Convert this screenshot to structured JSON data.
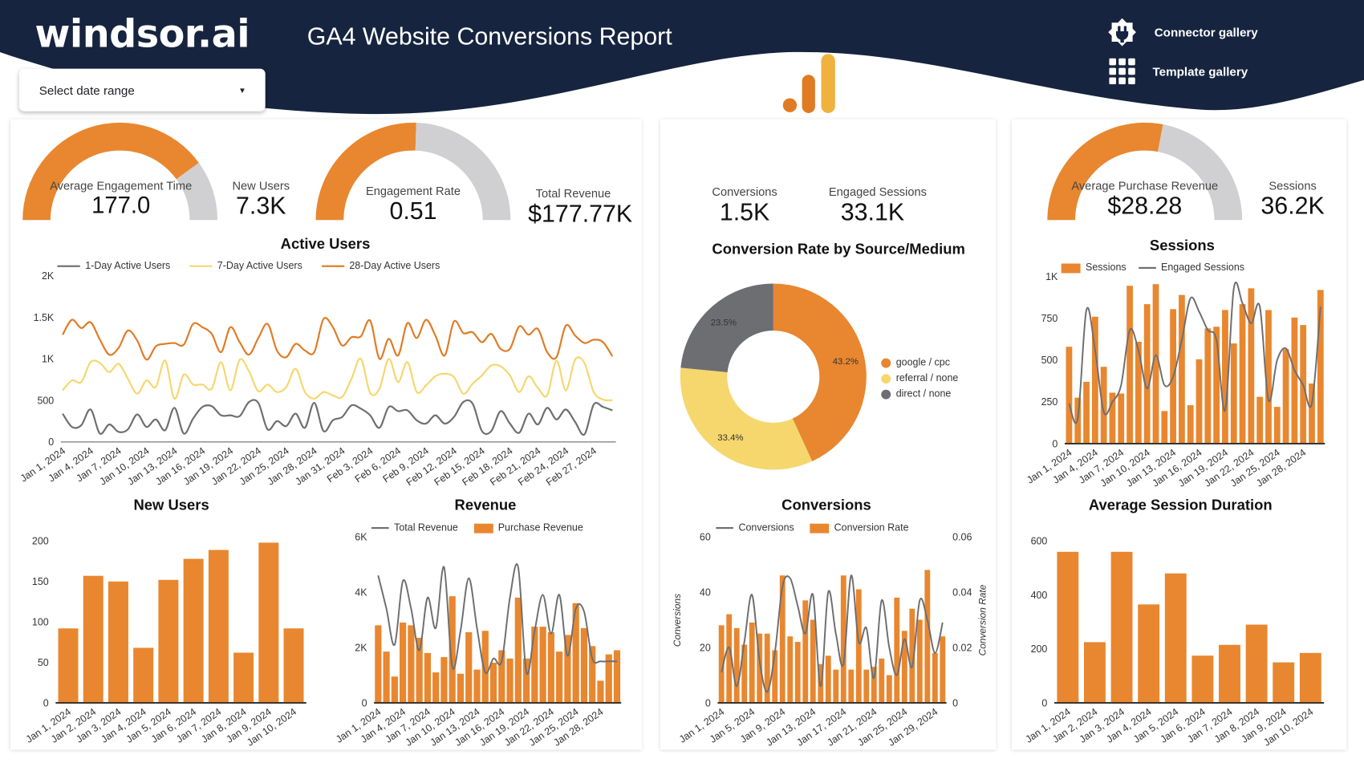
{
  "header": {
    "logo": "windsor.ai",
    "title": "GA4 Website Conversions Report",
    "links": [
      {
        "label": "Connector gallery",
        "icon": "plug-icon"
      },
      {
        "label": "Template gallery",
        "icon": "grid-icon"
      }
    ],
    "date_range": {
      "label": "Select date range",
      "icon": "caret-down-icon"
    }
  },
  "colors": {
    "navy": "#16243f",
    "orange": "#e8872f",
    "yellow": "#f5d76e",
    "gray": "#6d6e71",
    "gauge_track": "#d0d0d2"
  },
  "scorecards": {
    "avg_engagement_time": {
      "label": "Average Engagement Time",
      "value": "177.0",
      "gauge_fill": 0.8
    },
    "new_users": {
      "label": "New Users",
      "value": "7.3K"
    },
    "engagement_rate": {
      "label": "Engagement Rate",
      "value": "0.51",
      "gauge_fill": 0.51
    },
    "total_revenue": {
      "label": "Total Revenue",
      "value": "$177.77K"
    },
    "conversions": {
      "label": "Conversions",
      "value": "1.5K"
    },
    "engaged_sessions": {
      "label": "Engaged Sessions",
      "value": "33.1K"
    },
    "avg_purchase_revenue": {
      "label": "Average Purchase Revenue",
      "value": "$28.28",
      "gauge_fill": 0.56
    },
    "sessions": {
      "label": "Sessions",
      "value": "36.2K"
    }
  },
  "chart_data": [
    {
      "id": "active_users",
      "type": "line",
      "title": "Active Users",
      "y_ticks": [
        0,
        500,
        1000,
        1500,
        2000
      ],
      "y_tick_labels": [
        "0",
        "500",
        "1K",
        "1.5K",
        "2K"
      ],
      "ylim": [
        0,
        2000
      ],
      "x_tick_labels": [
        "Jan 1, 2024",
        "Jan 4, 2024",
        "Jan 7, 2024",
        "Jan 10, 2024",
        "Jan 13, 2024",
        "Jan 16, 2024",
        "Jan 19, 2024",
        "Jan 22, 2024",
        "Jan 25, 2024",
        "Jan 28, 2024",
        "Jan 31, 2024",
        "Feb 3, 2024",
        "Feb 6, 2024",
        "Feb 9, 2024",
        "Feb 12, 2024",
        "Feb 15, 2024",
        "Feb 18, 2024",
        "Feb 21, 2024",
        "Feb 24, 2024",
        "Feb 27, 2024"
      ],
      "series": [
        {
          "name": "1-Day Active Users",
          "color": "#6d6e71",
          "values": [
            340,
            180,
            200,
            390,
            100,
            210,
            120,
            150,
            330,
            180,
            270,
            140,
            410,
            100,
            280,
            420,
            430,
            320,
            320,
            310,
            480,
            470,
            150,
            250,
            190,
            340,
            170,
            470,
            130,
            260,
            300,
            440,
            400,
            320,
            170,
            420,
            370,
            380,
            260,
            220,
            320,
            220,
            300,
            480,
            460,
            130,
            130,
            370,
            220,
            110,
            340,
            210,
            410,
            270,
            390,
            240,
            90,
            450,
            420,
            380
          ]
        },
        {
          "name": "7-Day Active Users",
          "color": "#f5d76e",
          "values": [
            620,
            740,
            720,
            960,
            950,
            840,
            940,
            760,
            580,
            740,
            660,
            980,
            520,
            810,
            690,
            690,
            640,
            960,
            620,
            990,
            850,
            610,
            690,
            600,
            660,
            880,
            600,
            520,
            600,
            560,
            540,
            760,
            1000,
            590,
            640,
            1000,
            720,
            960,
            600,
            680,
            790,
            820,
            780,
            580,
            700,
            800,
            920,
            910,
            800,
            600,
            790,
            650,
            560,
            980,
            620,
            990,
            950,
            600,
            510,
            500
          ]
        },
        {
          "name": "28-Day Active Users",
          "color": "#e07b24",
          "values": [
            1290,
            1470,
            1370,
            1440,
            1230,
            1050,
            1130,
            1340,
            1220,
            990,
            1150,
            1180,
            1190,
            1170,
            1420,
            1380,
            1300,
            1080,
            1380,
            1200,
            1050,
            1250,
            1420,
            1100,
            1020,
            1180,
            1100,
            1080,
            1480,
            1380,
            1160,
            1260,
            1270,
            1460,
            1000,
            1240,
            1040,
            1430,
            1250,
            1470,
            1280,
            1040,
            1450,
            1310,
            1320,
            1200,
            1300,
            1120,
            1120,
            1390,
            1290,
            1360,
            1080,
            1020,
            1400,
            1280,
            1190,
            1230,
            1200,
            1030
          ]
        }
      ]
    },
    {
      "id": "new_users",
      "type": "bar",
      "title": "New Users",
      "y_ticks": [
        0,
        50,
        100,
        150,
        200
      ],
      "y_tick_labels": [
        "0",
        "50",
        "100",
        "150",
        "200"
      ],
      "ylim": [
        0,
        200
      ],
      "categories": [
        "Jan 1, 2024",
        "Jan 2, 2024",
        "Jan 3, 2024",
        "Jan 4, 2024",
        "Jan 5, 2024",
        "Jan 6, 2024",
        "Jan 7, 2024",
        "Jan 8, 2024",
        "Jan 9, 2024",
        "Jan 10, 2024"
      ],
      "values": [
        92,
        157,
        150,
        68,
        152,
        178,
        189,
        62,
        198,
        92
      ]
    },
    {
      "id": "revenue",
      "type": "bar+line",
      "title": "Revenue",
      "y_ticks": [
        0,
        2000,
        4000,
        6000
      ],
      "y_tick_labels": [
        "0",
        "2K",
        "4K",
        "6K"
      ],
      "ylim": [
        0,
        6000
      ],
      "x_tick_labels": [
        "Jan 1, 2024",
        "Jan 4, 2024",
        "Jan 7, 2024",
        "Jan 10, 2024",
        "Jan 13, 2024",
        "Jan 16, 2024",
        "Jan 19, 2024",
        "Jan 22, 2024",
        "Jan 25, 2024",
        "Jan 28, 2024"
      ],
      "series": [
        {
          "name": "Total Revenue",
          "kind": "line",
          "values": [
            4600,
            3400,
            2100,
            4400,
            3400,
            1900,
            3800,
            2700,
            4900,
            1300,
            2600,
            4500,
            2700,
            1100,
            1600,
            1500,
            3800,
            4900,
            1100,
            2600,
            3900,
            2500,
            3900,
            1700,
            3400,
            3300,
            1600,
            1500,
            1500,
            1500
          ]
        },
        {
          "name": "Purchase Revenue",
          "kind": "bar",
          "values": [
            2800,
            1850,
            950,
            2900,
            2800,
            2350,
            1800,
            1100,
            1650,
            3850,
            1050,
            2550,
            1200,
            2600,
            1450,
            1900,
            1600,
            3800,
            1600,
            2750,
            2750,
            2550,
            1850,
            2450,
            3600,
            2700,
            2050,
            800,
            1750,
            1900
          ]
        }
      ]
    },
    {
      "id": "conversion_rate_by_source",
      "type": "pie",
      "title": "Conversion Rate by Source/Medium",
      "slices": [
        {
          "label": "google / cpc",
          "value": 43.2,
          "text": "43.2%",
          "color": "#e8872f"
        },
        {
          "label": "referral / none",
          "value": 33.4,
          "text": "33.4%",
          "color": "#f5d76e"
        },
        {
          "label": "direct / none",
          "value": 23.5,
          "text": "23.5%",
          "color": "#6d6e71"
        }
      ]
    },
    {
      "id": "conversions",
      "type": "bar+line",
      "title": "Conversions",
      "ylabel": "Conversions",
      "y2label": "Conversion Rate",
      "y_ticks": [
        0,
        20,
        40,
        60
      ],
      "y_tick_labels": [
        "0",
        "20",
        "40",
        "60"
      ],
      "ylim": [
        0,
        60
      ],
      "y2_ticks": [
        0,
        0.02,
        0.04,
        0.06
      ],
      "y2_tick_labels": [
        "0",
        "0.02",
        "0.04",
        "0.06"
      ],
      "y2lim": [
        0,
        0.06
      ],
      "x_tick_labels": [
        "Jan 1, 2024",
        "Jan 5, 2024",
        "Jan 9, 2024",
        "Jan 13, 2024",
        "Jan 17, 2024",
        "Jan 21, 2024",
        "Jan 25, 2024",
        "Jan 29, 2024"
      ],
      "series": [
        {
          "name": "Conversions",
          "kind": "line",
          "values": [
            11,
            20,
            6,
            22,
            39,
            15,
            4,
            18,
            42,
            45,
            35,
            25,
            39,
            6,
            40,
            25,
            14,
            46,
            22,
            27,
            9,
            37,
            20,
            10,
            23,
            13,
            37,
            30,
            18,
            29
          ]
        },
        {
          "name": "Conversion Rate",
          "kind": "bar",
          "axis": "right",
          "values": [
            0.028,
            0.032,
            0.027,
            0.021,
            0.029,
            0.025,
            0.025,
            0.019,
            0.046,
            0.024,
            0.022,
            0.037,
            0.03,
            0.014,
            0.017,
            0.012,
            0.046,
            0.012,
            0.041,
            0.012,
            0.013,
            0.016,
            0.01,
            0.038,
            0.026,
            0.034,
            0.03,
            0.048,
            0.018,
            0.024
          ]
        }
      ]
    },
    {
      "id": "sessions",
      "type": "bar+line",
      "title": "Sessions",
      "y_ticks": [
        0,
        250,
        500,
        750,
        1000
      ],
      "y_tick_labels": [
        "0",
        "250",
        "500",
        "750",
        "1K"
      ],
      "ylim": [
        0,
        1000
      ],
      "x_tick_labels": [
        "Jan 1, 2024",
        "Jan 4, 2024",
        "Jan 7, 2024",
        "Jan 10, 2024",
        "Jan 13, 2024",
        "Jan 16, 2024",
        "Jan 19, 2024",
        "Jan 22, 2024",
        "Jan 25, 2024",
        "Jan 28, 2024"
      ],
      "series": [
        {
          "name": "Sessions",
          "kind": "bar",
          "values": [
            580,
            275,
            370,
            760,
            460,
            305,
            300,
            945,
            610,
            835,
            955,
            195,
            805,
            890,
            230,
            505,
            690,
            700,
            800,
            600,
            835,
            930,
            280,
            800,
            220,
            565,
            755,
            710,
            360,
            920
          ]
        },
        {
          "name": "Engaged Sessions",
          "kind": "line",
          "values": [
            240,
            150,
            800,
            560,
            190,
            250,
            350,
            680,
            560,
            330,
            530,
            350,
            400,
            620,
            870,
            790,
            680,
            620,
            200,
            930,
            840,
            720,
            820,
            260,
            500,
            570,
            440,
            350,
            240,
            820
          ]
        }
      ]
    },
    {
      "id": "avg_session_duration",
      "type": "bar",
      "title": "Average Session Duration",
      "y_ticks": [
        0,
        200,
        400,
        600
      ],
      "y_tick_labels": [
        "0",
        "200",
        "400",
        "600"
      ],
      "ylim": [
        0,
        600
      ],
      "categories": [
        "Jan 1, 2024",
        "Jan 2, 2024",
        "Jan 3, 2024",
        "Jan 4, 2024",
        "Jan 5, 2024",
        "Jan 6, 2024",
        "Jan 7, 2024",
        "Jan 8, 2024",
        "Jan 9, 2024",
        "Jan 10, 2024"
      ],
      "values": [
        560,
        225,
        560,
        365,
        480,
        175,
        215,
        290,
        150,
        185
      ]
    }
  ]
}
